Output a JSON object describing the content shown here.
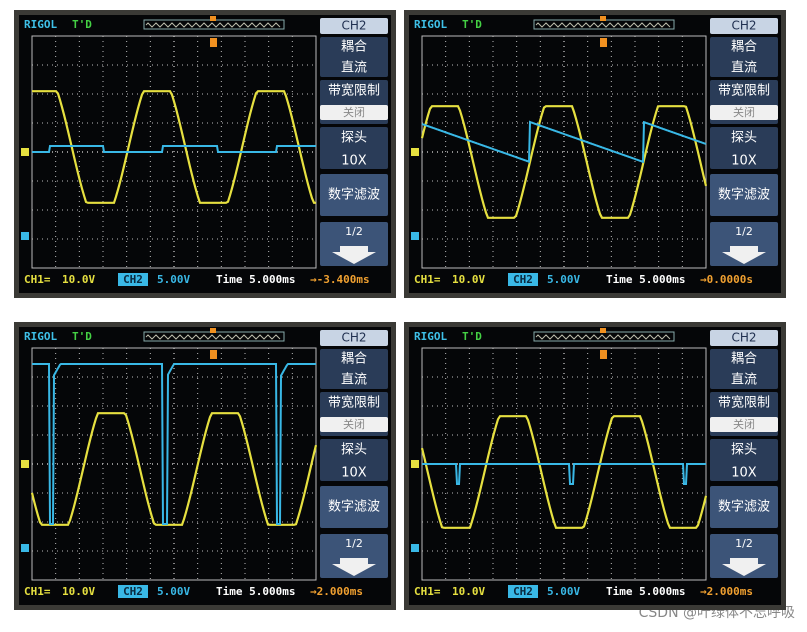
{
  "panels": [
    {
      "brand": "RIGOL",
      "trigger_status": "T'D",
      "menu": {
        "channel": "CH2",
        "coupling_label": "耦合",
        "coupling": "直流",
        "bandwidth_label": "带宽限制",
        "bandwidth": "关闭",
        "probe_label": "探头",
        "probe": "10X",
        "filter_label": "数字滤波",
        "page": "1/2"
      },
      "status": {
        "ch1_label": "CH1=",
        "ch1_scale": "10.0V",
        "ch2_label": "CH2",
        "ch2_scale": "5.00V",
        "timebase": "Time 5.000ms",
        "offset": "→-3.400ms"
      }
    },
    {
      "brand": "RIGOL",
      "trigger_status": "T'D",
      "menu": {
        "channel": "CH2",
        "coupling_label": "耦合",
        "coupling": "直流",
        "bandwidth_label": "带宽限制",
        "bandwidth": "关闭",
        "probe_label": "探头",
        "probe": "10X",
        "filter_label": "数字滤波",
        "page": "1/2"
      },
      "status": {
        "ch1_label": "CH1=",
        "ch1_scale": "10.0V",
        "ch2_label": "CH2",
        "ch2_scale": "5.00V",
        "timebase": "Time 5.000ms",
        "offset": "→0.0000s"
      }
    },
    {
      "brand": "RIGOL",
      "trigger_status": "T'D",
      "menu": {
        "channel": "CH2",
        "coupling_label": "耦合",
        "coupling": "直流",
        "bandwidth_label": "带宽限制",
        "bandwidth": "关闭",
        "probe_label": "探头",
        "probe": "10X",
        "filter_label": "数字滤波",
        "page": "1/2"
      },
      "status": {
        "ch1_label": "CH1=",
        "ch1_scale": "10.0V",
        "ch2_label": "CH2",
        "ch2_scale": "5.00V",
        "timebase": "Time 5.000ms",
        "offset": "→2.000ms"
      }
    },
    {
      "brand": "RIGOL",
      "trigger_status": "T'D",
      "menu": {
        "channel": "CH2",
        "coupling_label": "耦合",
        "coupling": "直流",
        "bandwidth_label": "带宽限制",
        "bandwidth": "关闭",
        "probe_label": "探头",
        "probe": "10X",
        "filter_label": "数字滤波",
        "page": "1/2"
      },
      "status": {
        "ch1_label": "CH1=",
        "ch1_scale": "10.0V",
        "ch2_label": "CH2",
        "ch2_scale": "5.00V",
        "timebase": "Time 5.000ms",
        "offset": "→2.000ms"
      }
    }
  ],
  "watermark": "CSDN @叶绿体不忘呼吸"
}
